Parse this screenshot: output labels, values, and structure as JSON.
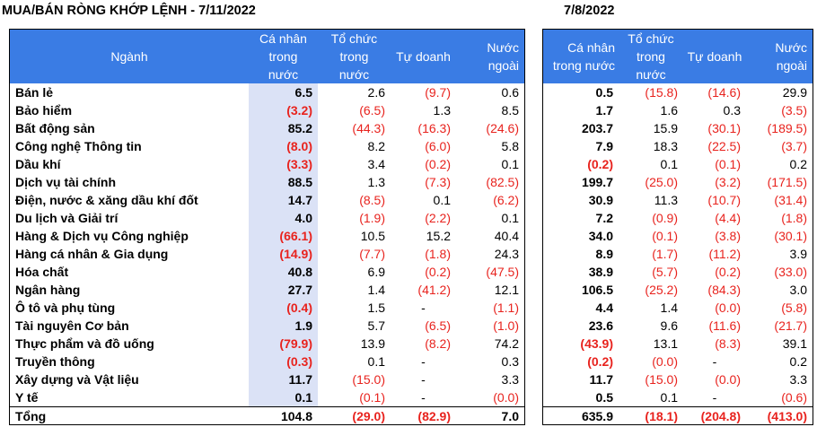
{
  "titles": {
    "left": "MUA/BÁN RÒNG KHỚP LỆNH - 7/11/2022",
    "right": "7/8/2022"
  },
  "colors": {
    "header_bg": "#3a7ce4",
    "highlight_col": "#dbe2f6",
    "negative": "#e8231e"
  },
  "left_table": {
    "headers": {
      "sector": "Ngành",
      "individual": [
        "Cá nhân",
        "trong",
        "nước"
      ],
      "institution": [
        "Tổ chức",
        "trong",
        "nước"
      ],
      "proprietary": [
        "Tự doanh"
      ],
      "foreign": [
        "Nước",
        "ngoài"
      ]
    },
    "rows": [
      {
        "name": "Bán lẻ",
        "individual": "6.5",
        "institution": "2.6",
        "proprietary": "(9.7)",
        "foreign": "0.6"
      },
      {
        "name": "Bảo hiểm",
        "individual": "(3.2)",
        "institution": "(6.5)",
        "proprietary": "1.3",
        "foreign": "8.5"
      },
      {
        "name": "Bất động sản",
        "individual": "85.2",
        "institution": "(44.3)",
        "proprietary": "(16.3)",
        "foreign": "(24.6)"
      },
      {
        "name": "Công nghệ Thông tin",
        "individual": "(8.0)",
        "institution": "8.2",
        "proprietary": "(6.0)",
        "foreign": "5.8"
      },
      {
        "name": "Dầu khí",
        "individual": "(3.3)",
        "institution": "3.4",
        "proprietary": "(0.2)",
        "foreign": "0.1"
      },
      {
        "name": "Dịch vụ tài chính",
        "individual": "88.5",
        "institution": "1.3",
        "proprietary": "(7.3)",
        "foreign": "(82.5)"
      },
      {
        "name": "Điện, nước & xăng dầu khí đốt",
        "individual": "14.7",
        "institution": "(8.5)",
        "proprietary": "0.1",
        "foreign": "(6.2)"
      },
      {
        "name": "Du lịch và Giải trí",
        "individual": "4.0",
        "institution": "(1.9)",
        "proprietary": "(2.2)",
        "foreign": "0.1"
      },
      {
        "name": "Hàng & Dịch vụ Công nghiệp",
        "individual": "(66.1)",
        "institution": "10.5",
        "proprietary": "15.2",
        "foreign": "40.4"
      },
      {
        "name": "Hàng cá nhân & Gia dụng",
        "individual": "(14.9)",
        "institution": "(7.7)",
        "proprietary": "(1.8)",
        "foreign": "24.3"
      },
      {
        "name": "Hóa chất",
        "individual": "40.8",
        "institution": "6.9",
        "proprietary": "(0.2)",
        "foreign": "(47.5)"
      },
      {
        "name": "Ngân hàng",
        "individual": "27.7",
        "institution": "1.4",
        "proprietary": "(41.2)",
        "foreign": "12.1"
      },
      {
        "name": "Ô tô và phụ tùng",
        "individual": "(0.4)",
        "institution": "1.5",
        "proprietary": "-",
        "foreign": "(1.1)"
      },
      {
        "name": "Tài nguyên Cơ bản",
        "individual": "1.9",
        "institution": "5.7",
        "proprietary": "(6.5)",
        "foreign": "(1.0)"
      },
      {
        "name": "Thực phẩm và đồ uống",
        "individual": "(79.9)",
        "institution": "13.9",
        "proprietary": "(8.2)",
        "foreign": "74.2"
      },
      {
        "name": "Truyền thông",
        "individual": "(0.3)",
        "institution": "0.1",
        "proprietary": "-",
        "foreign": "0.3"
      },
      {
        "name": "Xây dựng và Vật liệu",
        "individual": "11.7",
        "institution": "(15.0)",
        "proprietary": "-",
        "foreign": "3.3"
      },
      {
        "name": "Y tế",
        "individual": "0.1",
        "institution": "(0.1)",
        "proprietary": "-",
        "foreign": "(0.0)"
      }
    ],
    "total": {
      "name": "Tổng",
      "individual": "104.8",
      "institution": "(29.0)",
      "proprietary": "(82.9)",
      "foreign": "7.0"
    }
  },
  "right_table": {
    "headers": {
      "individual": [
        "Cá nhân",
        "trong nước"
      ],
      "institution": [
        "Tổ chức",
        "trong",
        "nước"
      ],
      "proprietary": [
        "Tự doanh"
      ],
      "foreign": [
        "Nước",
        "ngoài"
      ]
    },
    "rows": [
      {
        "individual": "0.5",
        "institution": "(15.8)",
        "proprietary": "(14.6)",
        "foreign": "29.9"
      },
      {
        "individual": "1.7",
        "institution": "1.6",
        "proprietary": "0.3",
        "foreign": "(3.5)"
      },
      {
        "individual": "203.7",
        "institution": "15.9",
        "proprietary": "(30.1)",
        "foreign": "(189.5)"
      },
      {
        "individual": "7.9",
        "institution": "18.3",
        "proprietary": "(22.5)",
        "foreign": "(3.7)"
      },
      {
        "individual": "(0.2)",
        "institution": "0.1",
        "proprietary": "(0.1)",
        "foreign": "0.2"
      },
      {
        "individual": "199.7",
        "institution": "(25.0)",
        "proprietary": "(3.2)",
        "foreign": "(171.5)"
      },
      {
        "individual": "30.9",
        "institution": "11.3",
        "proprietary": "(10.7)",
        "foreign": "(31.4)"
      },
      {
        "individual": "7.2",
        "institution": "(0.9)",
        "proprietary": "(4.4)",
        "foreign": "(1.8)"
      },
      {
        "individual": "34.0",
        "institution": "(0.1)",
        "proprietary": "(3.8)",
        "foreign": "(30.1)"
      },
      {
        "individual": "8.9",
        "institution": "(1.7)",
        "proprietary": "(11.2)",
        "foreign": "3.9"
      },
      {
        "individual": "38.9",
        "institution": "(5.7)",
        "proprietary": "(0.2)",
        "foreign": "(33.0)"
      },
      {
        "individual": "106.5",
        "institution": "(25.2)",
        "proprietary": "(84.3)",
        "foreign": "3.0"
      },
      {
        "individual": "4.4",
        "institution": "1.4",
        "proprietary": "(0.0)",
        "foreign": "(5.8)"
      },
      {
        "individual": "23.6",
        "institution": "9.6",
        "proprietary": "(11.6)",
        "foreign": "(21.7)"
      },
      {
        "individual": "(43.9)",
        "institution": "13.1",
        "proprietary": "(8.3)",
        "foreign": "39.1"
      },
      {
        "individual": "(0.2)",
        "institution": "(0.0)",
        "proprietary": "-",
        "foreign": "0.2"
      },
      {
        "individual": "11.7",
        "institution": "(15.0)",
        "proprietary": "(0.0)",
        "foreign": "3.3"
      },
      {
        "individual": "0.5",
        "institution": "0.1",
        "proprietary": "-",
        "foreign": "(0.6)"
      }
    ],
    "total": {
      "individual": "635.9",
      "institution": "(18.1)",
      "proprietary": "(204.8)",
      "foreign": "(413.0)"
    }
  }
}
